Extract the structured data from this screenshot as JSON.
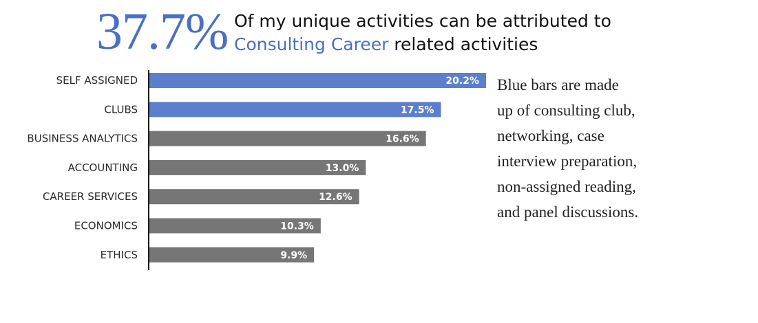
{
  "headline": {
    "big_number": "37.7%",
    "line1": "Of my unique activities can be attributed to",
    "line2_accent": "Consulting Career",
    "line2_rest": " related activities"
  },
  "note": {
    "lines": [
      "Blue bars are made",
      "up of consulting club,",
      "networking, case",
      "interview preparation,",
      "non-assigned reading,",
      "and panel discussions."
    ]
  },
  "colors": {
    "accent": "#4a6fc4",
    "highlight_bar": "#5b7fcc",
    "other_bar": "#767676",
    "axis": "#1a1a1a"
  },
  "chart_data": {
    "type": "bar",
    "orientation": "horizontal",
    "categories": [
      "SELF ASSIGNED",
      "CLUBS",
      "BUSINESS ANALYTICS",
      "ACCOUNTING",
      "CAREER SERVICES",
      "ECONOMICS",
      "ETHICS"
    ],
    "values": [
      20.2,
      17.5,
      16.6,
      13.0,
      12.6,
      10.3,
      9.9
    ],
    "value_labels": [
      "20.2%",
      "17.5%",
      "16.6%",
      "13.0%",
      "12.6%",
      "10.3%",
      "9.9%"
    ],
    "highlighted": [
      true,
      true,
      false,
      false,
      false,
      false,
      false
    ],
    "unit": "%",
    "xlim": [
      0,
      20.2
    ],
    "grid": false,
    "legend": "none"
  }
}
